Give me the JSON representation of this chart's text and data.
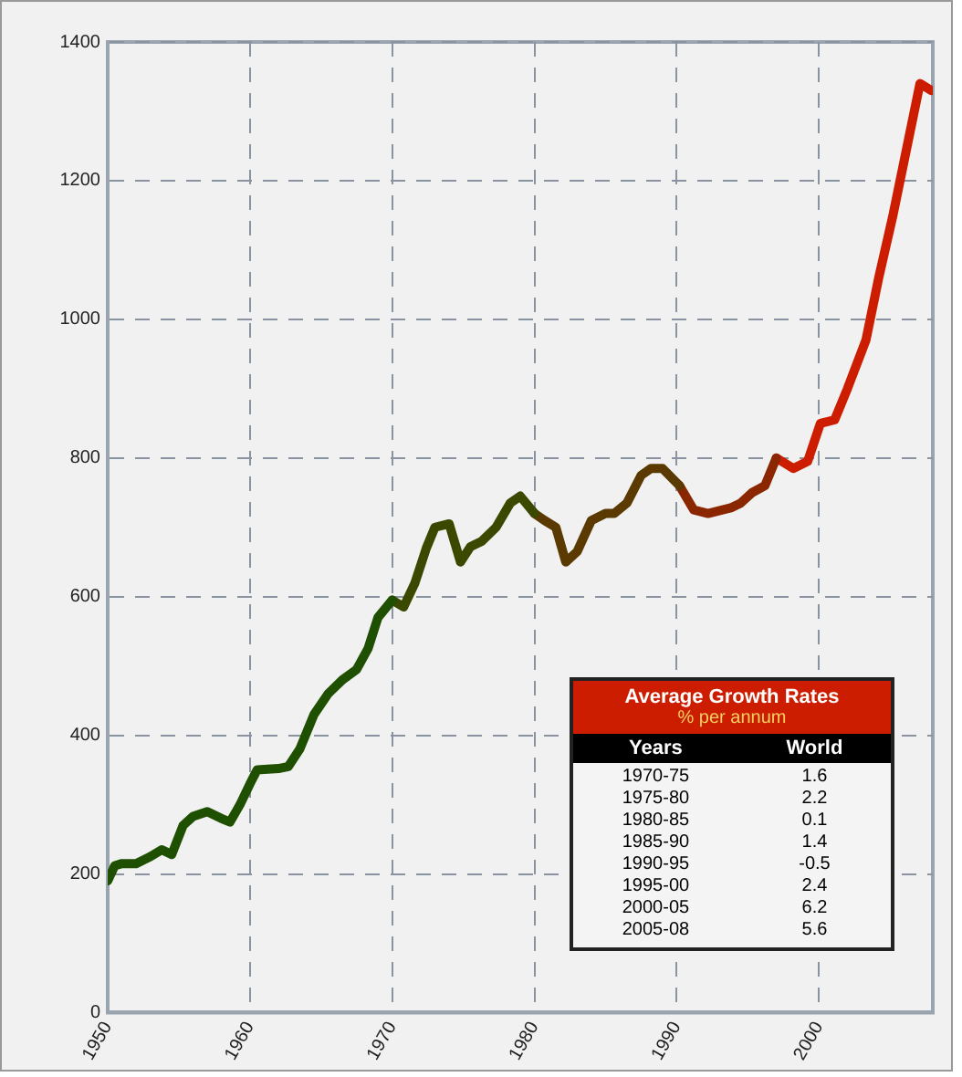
{
  "chart_data": {
    "type": "line",
    "xlim": [
      1950,
      2008
    ],
    "xticks": [
      1950,
      1960,
      1970,
      1980,
      1990,
      2000
    ],
    "ylim": [
      0,
      1400
    ],
    "yticks": [
      0,
      200,
      400,
      600,
      800,
      1000,
      1200,
      1400
    ],
    "grid": true,
    "line_style": "solid",
    "marker": "none",
    "legend": false,
    "series": [
      {
        "color": "#1f4f00",
        "x": [
          1950,
          1950.5,
          1951,
          1952,
          1953,
          1953.8,
          1954.5,
          1955.3,
          1956,
          1957,
          1958,
          1958.6,
          1959.3,
          1960,
          1960.5,
          1962,
          1962.7,
          1963.5,
          1964.5,
          1965.5,
          1966.5,
          1967.5,
          1968.3,
          1969,
          1970
        ],
        "values": [
          190,
          212,
          215,
          215,
          225,
          235,
          228,
          270,
          283,
          290,
          280,
          275,
          300,
          330,
          350,
          352,
          355,
          380,
          430,
          460,
          480,
          495,
          525,
          570,
          595
        ]
      },
      {
        "color": "#3a4800",
        "x": [
          1970,
          1970.8,
          1971.6,
          1972.4,
          1973,
          1974,
          1974.8,
          1975.5,
          1976.3,
          1977.3,
          1978.3,
          1979,
          1980
        ],
        "values": [
          595,
          585,
          620,
          670,
          700,
          705,
          650,
          672,
          680,
          700,
          735,
          745,
          720
        ]
      },
      {
        "color": "#5a3a00",
        "x": [
          1980,
          1980.7,
          1981.5,
          1982.2,
          1983,
          1984,
          1985,
          1985.6,
          1986.5,
          1987.5,
          1988.2,
          1989,
          1990.2
        ],
        "values": [
          720,
          710,
          700,
          650,
          665,
          710,
          720,
          720,
          735,
          775,
          785,
          785,
          760
        ]
      },
      {
        "color": "#8a2600",
        "x": [
          1990.2,
          1991.2,
          1992.2,
          1993.8,
          1994.5,
          1995.3,
          1996.2,
          1997
        ],
        "values": [
          760,
          725,
          720,
          728,
          735,
          750,
          760,
          800
        ]
      },
      {
        "color": "#cc1d00",
        "x": [
          1997,
          1998.2,
          1999.2,
          2000.1,
          2001.1,
          2002,
          2003.3,
          2004.2,
          2005.2,
          2006.1,
          2007.1,
          2007.9
        ],
        "values": [
          800,
          785,
          795,
          850,
          855,
          900,
          970,
          1060,
          1150,
          1240,
          1340,
          1330
        ]
      }
    ],
    "annotations": [
      "Average Growth Rates",
      "% per annum",
      "Years",
      "World",
      "1970-75",
      "1.6",
      "1975-80",
      "2.2",
      "1980-85",
      "0.1",
      "1985-90",
      "1.4",
      "1990-95",
      "-0.5",
      "1995-00",
      "2.4",
      "2000-05",
      "6.2",
      "2005-08",
      "5.6"
    ]
  }
}
